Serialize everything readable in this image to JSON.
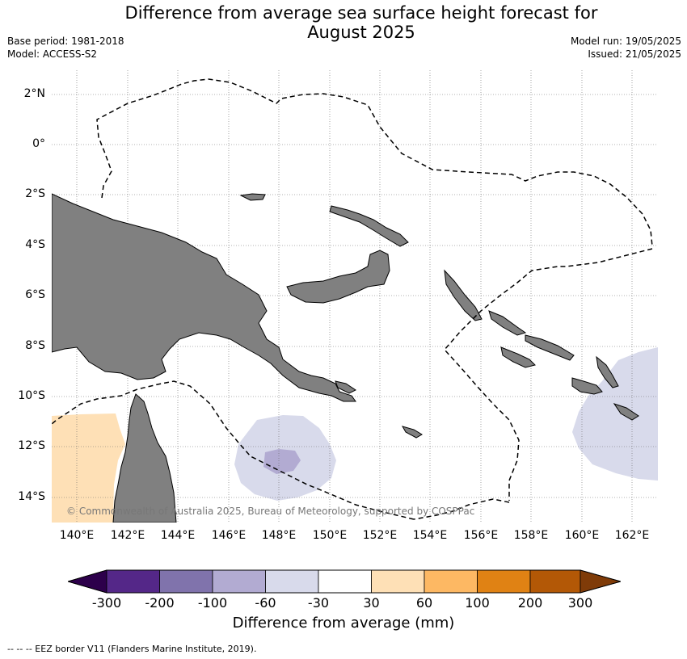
{
  "title_line1": "Difference from average sea surface height forecast for",
  "title_line2": "August 2025",
  "base_period": "Base period: 1981-2018",
  "model": "Model: ACCESS-S2",
  "model_run": "Model run: 19/05/2025",
  "issued": "Issued: 21/05/2025",
  "lat_labels": [
    "2°N",
    "0°",
    "2°S",
    "4°S",
    "6°S",
    "8°S",
    "10°S",
    "12°S",
    "14°S"
  ],
  "lon_labels": [
    "140°E",
    "142°E",
    "144°E",
    "146°E",
    "148°E",
    "150°E",
    "152°E",
    "154°E",
    "156°E",
    "158°E",
    "160°E",
    "162°E"
  ],
  "copyright": "© Commonwealth of Australia 2025, Bureau of Meteorology, supported by COSPPac",
  "colorbar": {
    "ticks": [
      "-300",
      "-200",
      "-100",
      "-60",
      "-30",
      "30",
      "60",
      "100",
      "200",
      "300"
    ],
    "colors": [
      "#2d004b",
      "#542788",
      "#8073ac",
      "#b2abd2",
      "#d8daeb",
      "#ffffff",
      "#fee0b6",
      "#fdb863",
      "#e08214",
      "#b35806",
      "#7f3b08"
    ],
    "label": "Difference from average (mm)"
  },
  "land_color": "#808080",
  "footnote": "--  --  -- EEZ border V11 (Flanders Marine Institute, 2019)."
}
